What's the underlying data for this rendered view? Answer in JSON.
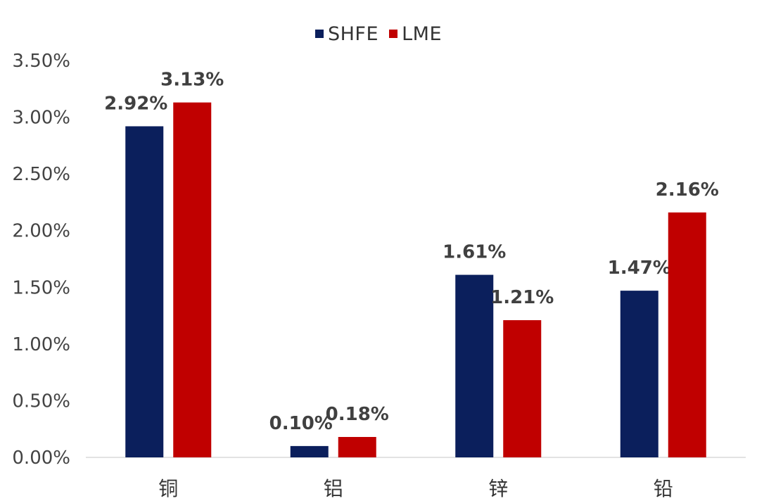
{
  "chart_data": {
    "type": "bar",
    "categories": [
      "铜",
      "铝",
      "锌",
      "铅"
    ],
    "series": [
      {
        "name": "SHFE",
        "values": [
          2.92,
          0.1,
          1.61,
          1.47
        ],
        "labels": [
          "2.92%",
          "0.10%",
          "1.61%",
          "1.47%"
        ],
        "color": "#0b1f5c"
      },
      {
        "name": "LME",
        "values": [
          3.13,
          0.18,
          1.21,
          2.16
        ],
        "labels": [
          "3.13%",
          "0.18%",
          "1.21%",
          "2.16%"
        ],
        "color": "#c00000"
      }
    ],
    "yticks": [
      "0.00%",
      "0.50%",
      "1.00%",
      "1.50%",
      "2.00%",
      "2.50%",
      "3.00%",
      "3.50%"
    ],
    "ylim": [
      0,
      3.5
    ],
    "legend_position": "top-center",
    "grid": false
  }
}
